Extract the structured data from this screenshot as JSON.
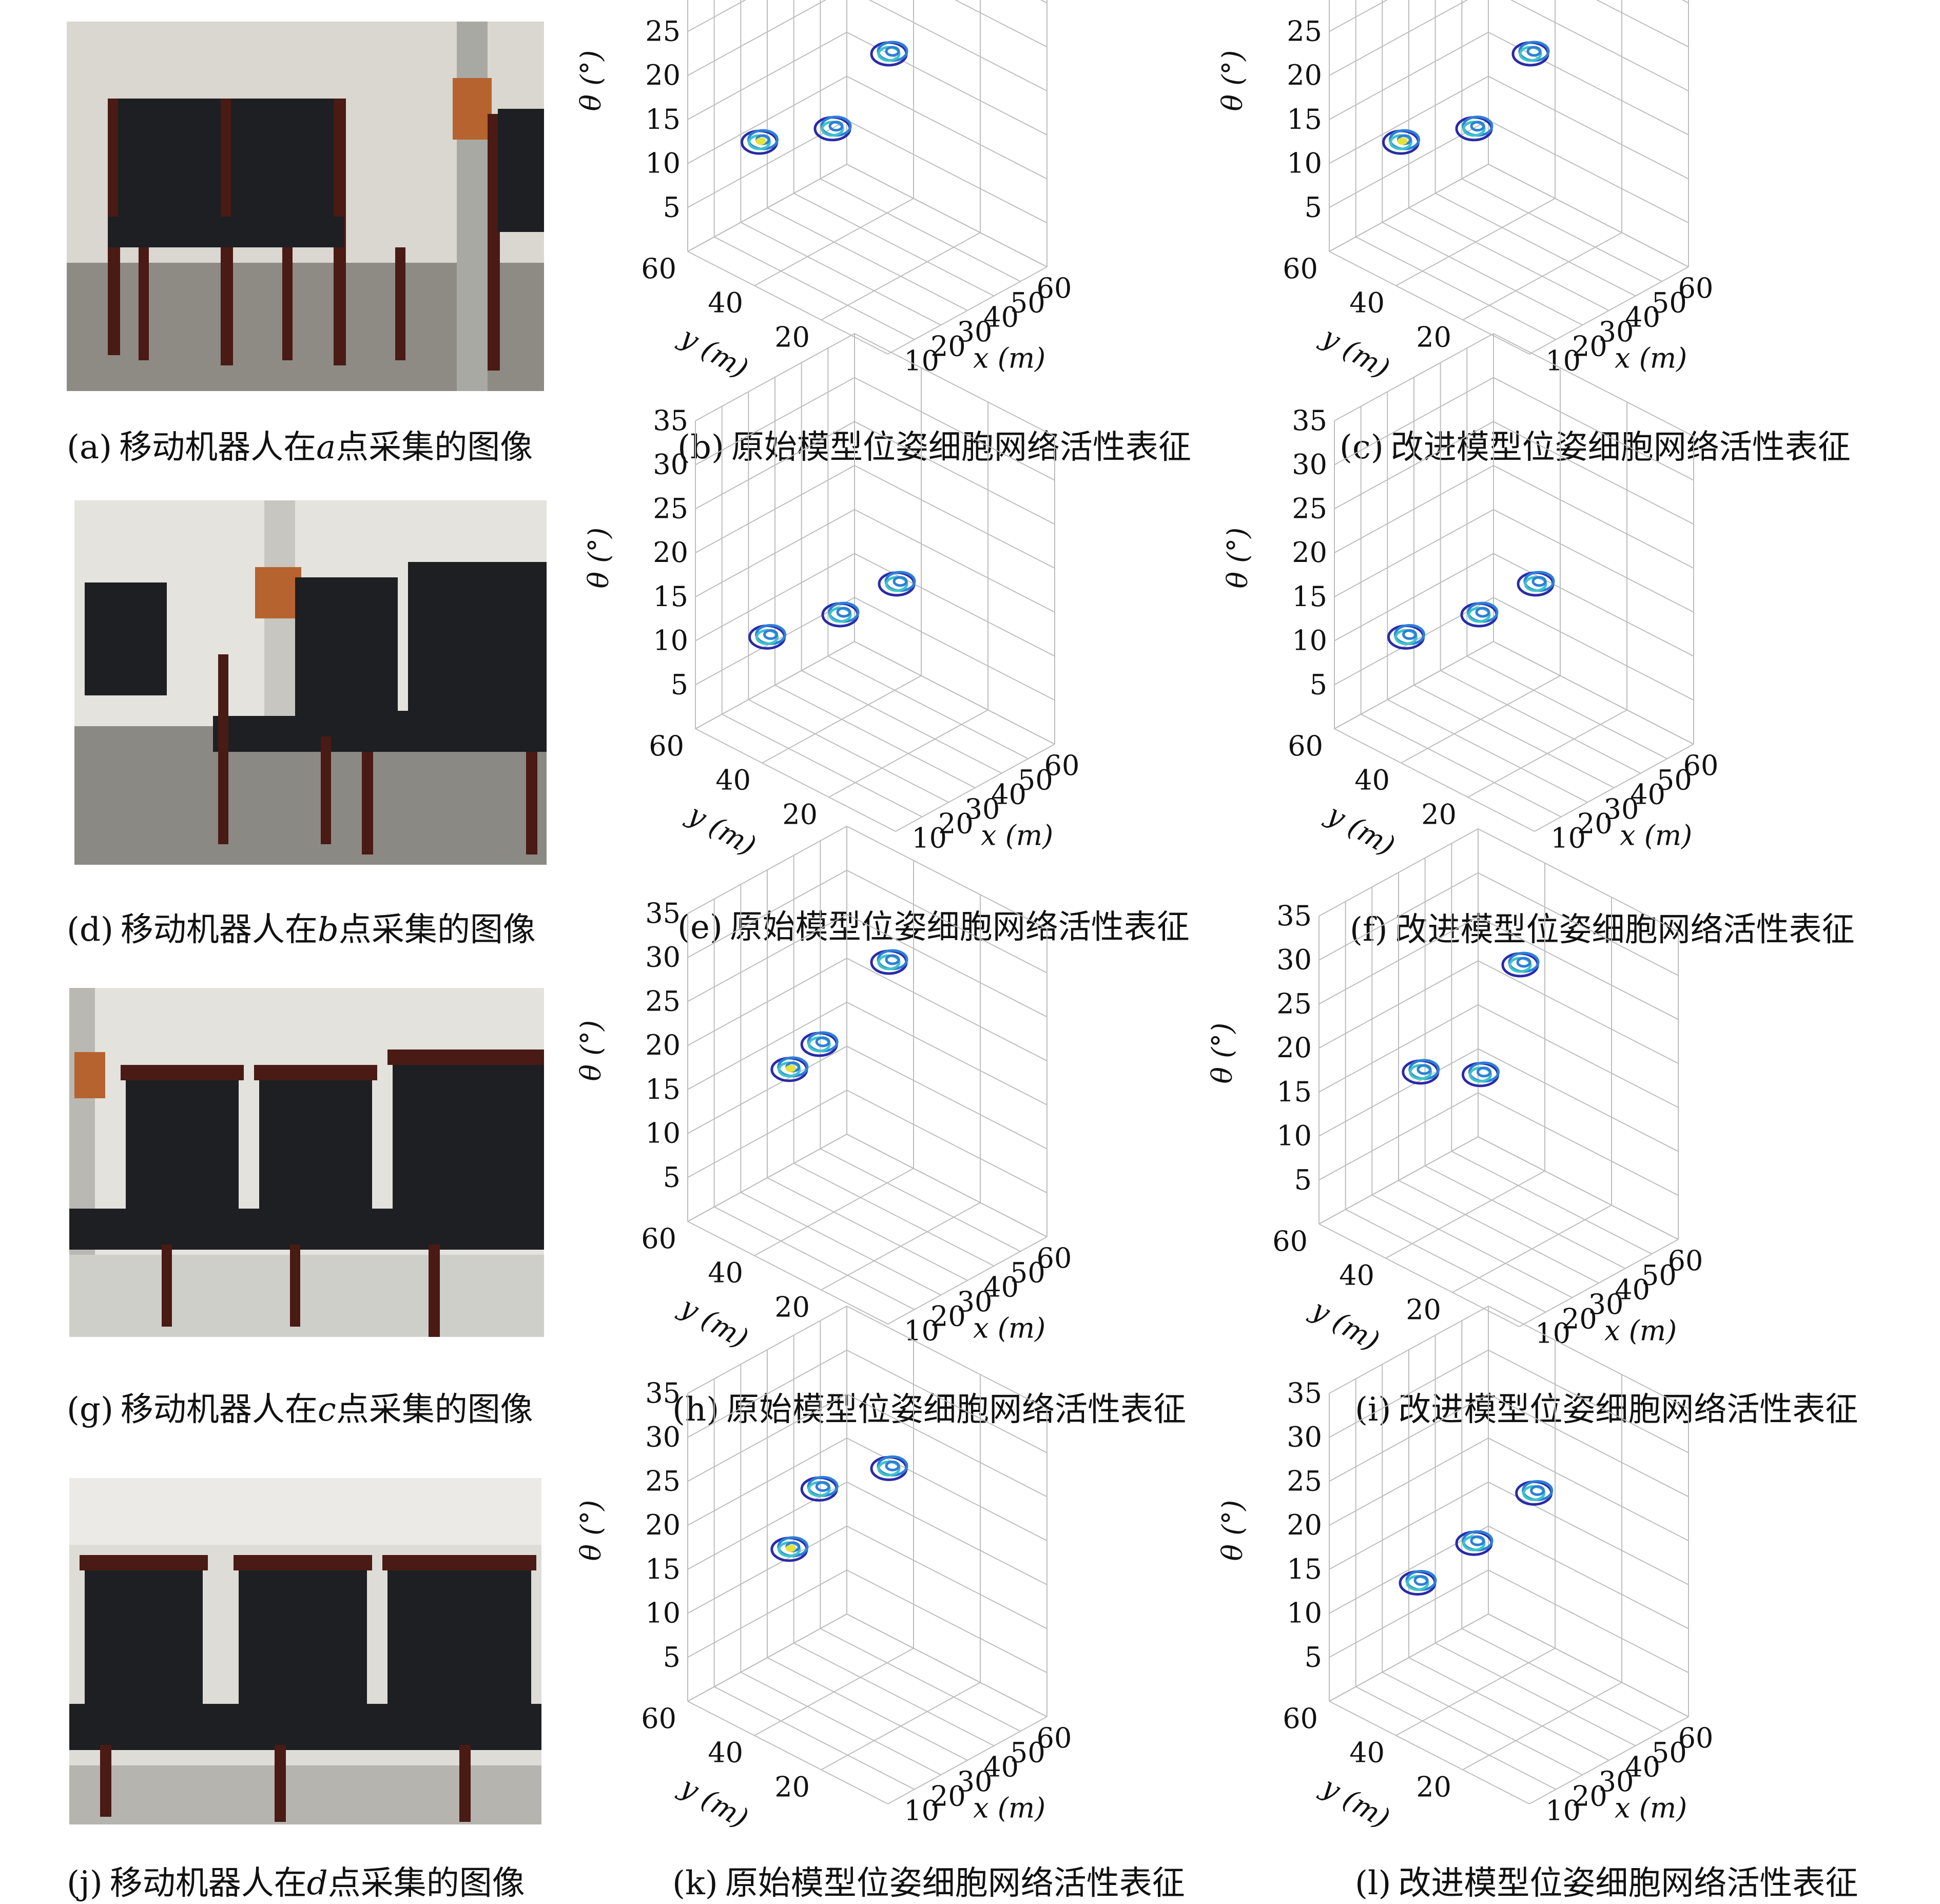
{
  "rows": [
    {
      "photo": {
        "caption_tag": "(a)",
        "caption_pre": "移动机器人在",
        "caption_var": "a",
        "caption_post": "点采集的图像"
      },
      "charts": [
        {
          "caption_tag": "(b)",
          "caption": "原始模型位姿细胞网络活性表征"
        },
        {
          "caption_tag": "(c)",
          "caption": "改进模型位姿细胞网络活性表征"
        }
      ]
    },
    {
      "photo": {
        "caption_tag": "(d)",
        "caption_pre": "移动机器人在",
        "caption_var": "b",
        "caption_post": "点采集的图像"
      },
      "charts": [
        {
          "caption_tag": "(e)",
          "caption": "原始模型位姿细胞网络活性表征"
        },
        {
          "caption_tag": "(f)",
          "caption": "改进模型位姿细胞网络活性表征"
        }
      ]
    },
    {
      "photo": {
        "caption_tag": "(g)",
        "caption_pre": "移动机器人在",
        "caption_var": "c",
        "caption_post": "点采集的图像"
      },
      "charts": [
        {
          "caption_tag": "(h)",
          "caption": "原始模型位姿细胞网络活性表征"
        },
        {
          "caption_tag": "(i)",
          "caption": "改进模型位姿细胞网络活性表征"
        }
      ]
    },
    {
      "photo": {
        "caption_tag": "(j)",
        "caption_pre": "移动机器人在",
        "caption_var": "d",
        "caption_post": "点采集的图像"
      },
      "charts": [
        {
          "caption_tag": "(k)",
          "caption": "原始模型位姿细胞网络活性表征"
        },
        {
          "caption_tag": "(l)",
          "caption": "改进模型位姿细胞网络活性表征"
        }
      ]
    }
  ],
  "axes": {
    "x_label": "x (m)",
    "y_label": "y (m)",
    "z_label": "θ (°)",
    "x_ticks": [
      "10",
      "20",
      "30",
      "40",
      "50",
      "60"
    ],
    "y_ticks": [
      "60",
      "40",
      "20"
    ],
    "z_ticks": [
      "5",
      "10",
      "15",
      "20",
      "25",
      "30",
      "35"
    ]
  },
  "colors": {
    "cluster_dark": "#2a2aa8",
    "cluster_mid": "#2d7fd8",
    "cluster_light": "#3cc3c8",
    "cluster_peak": "#e5e23a",
    "grid": "#bdbdbd"
  },
  "chart_data": [
    {
      "id": "b",
      "type": "scatter",
      "x_label": "x (m)",
      "y_label": "y (m)",
      "z_label": "θ (°)",
      "xlim": [
        0,
        60
      ],
      "ylim": [
        0,
        60
      ],
      "zlim": [
        0,
        35
      ],
      "clusters": [
        {
          "x": 15,
          "y": 50,
          "z": 12,
          "peak": true
        },
        {
          "x": 30,
          "y": 40,
          "z": 13,
          "peak": false
        },
        {
          "x": 45,
          "y": 35,
          "z": 20,
          "peak": false
        }
      ]
    },
    {
      "id": "c",
      "type": "scatter",
      "x_label": "x (m)",
      "y_label": "y (m)",
      "z_label": "θ (°)",
      "xlim": [
        0,
        60
      ],
      "ylim": [
        0,
        60
      ],
      "zlim": [
        0,
        35
      ],
      "clusters": [
        {
          "x": 15,
          "y": 50,
          "z": 12,
          "peak": true
        },
        {
          "x": 30,
          "y": 40,
          "z": 13,
          "peak": false
        },
        {
          "x": 45,
          "y": 35,
          "z": 20,
          "peak": false
        }
      ]
    },
    {
      "id": "e",
      "type": "scatter",
      "x_label": "x (m)",
      "y_label": "y (m)",
      "z_label": "θ (°)",
      "xlim": [
        0,
        60
      ],
      "ylim": [
        0,
        60
      ],
      "zlim": [
        0,
        35
      ],
      "clusters": [
        {
          "x": 15,
          "y": 50,
          "z": 10,
          "peak": false
        },
        {
          "x": 30,
          "y": 40,
          "z": 12,
          "peak": false
        },
        {
          "x": 45,
          "y": 35,
          "z": 14,
          "peak": false
        }
      ]
    },
    {
      "id": "f",
      "type": "scatter",
      "x_label": "x (m)",
      "y_label": "y (m)",
      "z_label": "θ (°)",
      "xlim": [
        0,
        60
      ],
      "ylim": [
        0,
        60
      ],
      "zlim": [
        0,
        35
      ],
      "clusters": [
        {
          "x": 15,
          "y": 50,
          "z": 10,
          "peak": false
        },
        {
          "x": 30,
          "y": 40,
          "z": 12,
          "peak": false
        },
        {
          "x": 45,
          "y": 35,
          "z": 14,
          "peak": false
        }
      ]
    },
    {
      "id": "h",
      "type": "scatter",
      "x_label": "x (m)",
      "y_label": "y (m)",
      "z_label": "θ (°)",
      "xlim": [
        0,
        60
      ],
      "ylim": [
        0,
        60
      ],
      "zlim": [
        0,
        35
      ],
      "clusters": [
        {
          "x": 20,
          "y": 45,
          "z": 17,
          "peak": true
        },
        {
          "x": 25,
          "y": 40,
          "z": 20,
          "peak": false
        },
        {
          "x": 45,
          "y": 35,
          "z": 27,
          "peak": false
        }
      ]
    },
    {
      "id": "i",
      "type": "scatter",
      "x_label": "x (m)",
      "y_label": "y (m)",
      "z_label": "θ (°)",
      "xlim": [
        0,
        60
      ],
      "ylim": [
        0,
        60
      ],
      "zlim": [
        0,
        35
      ],
      "clusters": [
        {
          "x": 20,
          "y": 45,
          "z": 17,
          "peak": false
        },
        {
          "x": 30,
          "y": 35,
          "z": 17,
          "peak": false
        },
        {
          "x": 45,
          "y": 35,
          "z": 27,
          "peak": false
        }
      ]
    },
    {
      "id": "k",
      "type": "scatter",
      "x_label": "x (m)",
      "y_label": "y (m)",
      "z_label": "θ (°)",
      "xlim": [
        0,
        60
      ],
      "ylim": [
        0,
        60
      ],
      "zlim": [
        0,
        35
      ],
      "clusters": [
        {
          "x": 20,
          "y": 45,
          "z": 17,
          "peak": true
        },
        {
          "x": 25,
          "y": 40,
          "z": 24,
          "peak": false
        },
        {
          "x": 45,
          "y": 35,
          "z": 24,
          "peak": false
        }
      ]
    },
    {
      "id": "l",
      "type": "scatter",
      "x_label": "x (m)",
      "y_label": "y (m)",
      "z_label": "θ (°)",
      "xlim": [
        0,
        60
      ],
      "ylim": [
        0,
        60
      ],
      "zlim": [
        0,
        35
      ],
      "clusters": [
        {
          "x": 15,
          "y": 45,
          "z": 14,
          "peak": false
        },
        {
          "x": 30,
          "y": 40,
          "z": 17,
          "peak": false
        },
        {
          "x": 40,
          "y": 30,
          "z": 23,
          "peak": false
        }
      ]
    }
  ]
}
